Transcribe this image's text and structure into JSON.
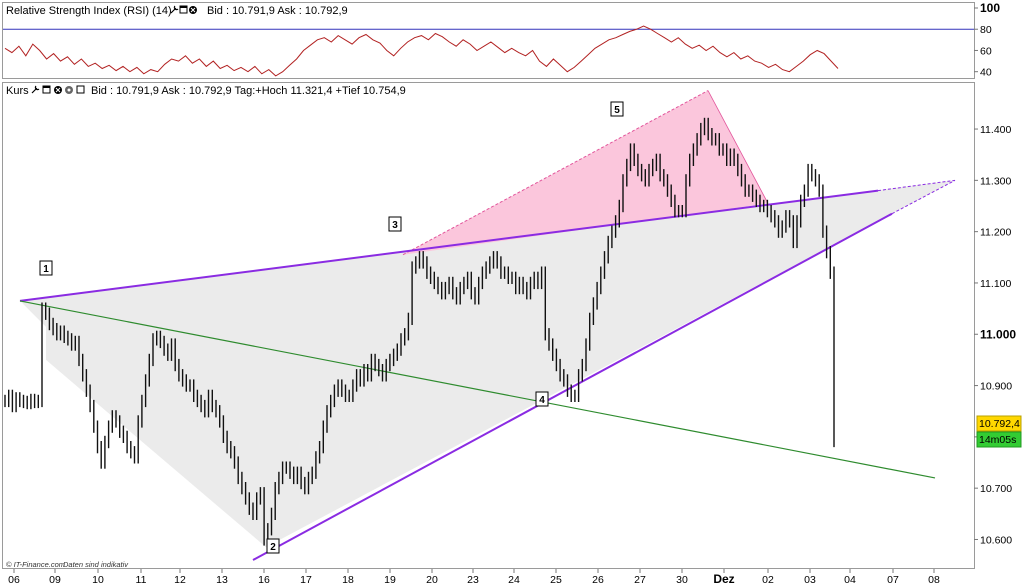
{
  "rsi_panel": {
    "title": "Relative Strength Index (RSI) (14)",
    "quote": "Bid : 10.791,9 Ask : 10.792,9",
    "ticks": [
      "100",
      "80",
      "60",
      "40"
    ],
    "reference_level": 80,
    "line_color": "#b22222",
    "reference_color": "#3333bb"
  },
  "price_panel": {
    "title": "Kurs",
    "quote": "Bid : 10.791,9 Ask : 10.792,9 Tag:+Hoch 11.321,4 +Tief 10.754,9",
    "last_price": "10.792,4",
    "countdown": "14m05s",
    "footer_left": "© IT-Finance.com",
    "footer_note": "Daten sind indikativ",
    "header_icons": [
      "wrench-icon",
      "window-icon",
      "close-icon",
      "settings-icon"
    ]
  },
  "chart_data": [
    {
      "type": "line",
      "name": "RSI (14)",
      "ylim": [
        35,
        100
      ],
      "yticks": [
        100,
        80,
        60,
        40
      ],
      "reference_line": 80,
      "values": [
        62,
        58,
        64,
        55,
        66,
        60,
        52,
        57,
        50,
        54,
        47,
        52,
        45,
        48,
        43,
        46,
        41,
        45,
        40,
        44,
        38,
        42,
        40,
        47,
        52,
        50,
        55,
        48,
        52,
        45,
        50,
        43,
        46,
        41,
        44,
        40,
        45,
        38,
        42,
        36,
        40,
        46,
        52,
        60,
        65,
        70,
        72,
        68,
        74,
        70,
        66,
        72,
        75,
        70,
        67,
        60,
        55,
        62,
        68,
        72,
        74,
        70,
        76,
        73,
        68,
        64,
        70,
        66,
        60,
        64,
        68,
        63,
        58,
        62,
        58,
        55,
        60,
        50,
        45,
        52,
        46,
        40,
        44,
        50,
        56,
        62,
        66,
        70,
        72,
        75,
        78,
        80,
        83,
        80,
        76,
        72,
        68,
        72,
        66,
        62,
        65,
        60,
        64,
        58,
        54,
        58,
        52,
        55,
        50,
        48,
        44,
        47,
        42,
        40,
        45,
        50,
        56,
        60,
        57,
        50,
        43
      ]
    },
    {
      "type": "line",
      "name": "Kurs",
      "ylim": [
        10560,
        11480
      ],
      "yticks": [
        11400,
        11300,
        11200,
        11100,
        11000,
        10900,
        10800,
        10700,
        10600
      ],
      "x_tick_labels": [
        "06",
        "09",
        "10",
        "11",
        "12",
        "13",
        "16",
        "17",
        "18",
        "19",
        "20",
        "23",
        "24",
        "25",
        "26",
        "27",
        "30",
        "Dez",
        "02",
        "03",
        "04",
        "07",
        "08"
      ],
      "values": [
        10870,
        10880,
        10860,
        10875,
        10870,
        10868,
        10866,
        10872,
        10868,
        10870,
        11050,
        11040,
        11020,
        11010,
        11000,
        11005,
        10995,
        10990,
        10980,
        10985,
        10950,
        10920,
        10890,
        10860,
        10820,
        10780,
        10750,
        10790,
        10820,
        10840,
        10830,
        10810,
        10800,
        10780,
        10770,
        10760,
        10830,
        10870,
        10910,
        10950,
        10990,
        10995,
        10985,
        10970,
        10960,
        10980,
        10940,
        10920,
        10910,
        10900,
        10900,
        10880,
        10870,
        10860,
        10850,
        10880,
        10860,
        10850,
        10830,
        10800,
        10780,
        10770,
        10750,
        10720,
        10700,
        10680,
        10660,
        10650,
        10680,
        10690,
        10600,
        10620,
        10650,
        10700,
        10720,
        10740,
        10740,
        10730,
        10720,
        10730,
        10710,
        10700,
        10720,
        10730,
        10760,
        10780,
        10820,
        10850,
        10870,
        10890,
        10900,
        10890,
        10880,
        10880,
        10900,
        10920,
        10910,
        10930,
        10920,
        10950,
        10940,
        10930,
        10920,
        10940,
        10950,
        10960,
        10970,
        10990,
        11000,
        11030,
        11130,
        11140,
        11150,
        11140,
        11120,
        11110,
        11100,
        11090,
        11080,
        11090,
        11100,
        11080,
        11070,
        11090,
        11100,
        11110,
        11080,
        11070,
        11100,
        11120,
        11130,
        11140,
        11150,
        11140,
        11120,
        11120,
        11110,
        11110,
        11090,
        11100,
        11090,
        11080,
        11100,
        11110,
        11100,
        11120,
        11000,
        10980,
        10960,
        10940,
        10920,
        10910,
        10890,
        10880,
        10880,
        10920,
        10940,
        10980,
        11030,
        11060,
        11090,
        11120,
        11150,
        11180,
        11200,
        11220,
        11250,
        11300,
        11330,
        11360,
        11340,
        11320,
        11310,
        11300,
        11320,
        11330,
        11340,
        11310,
        11300,
        11280,
        11260,
        11240,
        11240,
        11240,
        11300,
        11340,
        11360,
        11380,
        11400,
        11410,
        11390,
        11380,
        11380,
        11360,
        11360,
        11340,
        11350,
        11340,
        11320,
        11300,
        11280,
        11280,
        11270,
        11260,
        11250,
        11250,
        11240,
        11230,
        11220,
        11200,
        11210,
        11230,
        11220,
        11180,
        11220,
        11260,
        11280,
        11320,
        11310,
        11300,
        11280,
        11200,
        11160,
        11120,
        10792
      ]
    }
  ],
  "annotations": {
    "wave_labels": [
      "1",
      "2",
      "3",
      "4",
      "5"
    ],
    "colors": {
      "trend_purple": "#8a2be2",
      "trend_green": "#2e8b2e",
      "fill_grey": "#ebebeb",
      "fill_pink": "#fbc6dc",
      "last_price_bg": "#ffd700",
      "countdown_bg": "#33cc33"
    }
  }
}
